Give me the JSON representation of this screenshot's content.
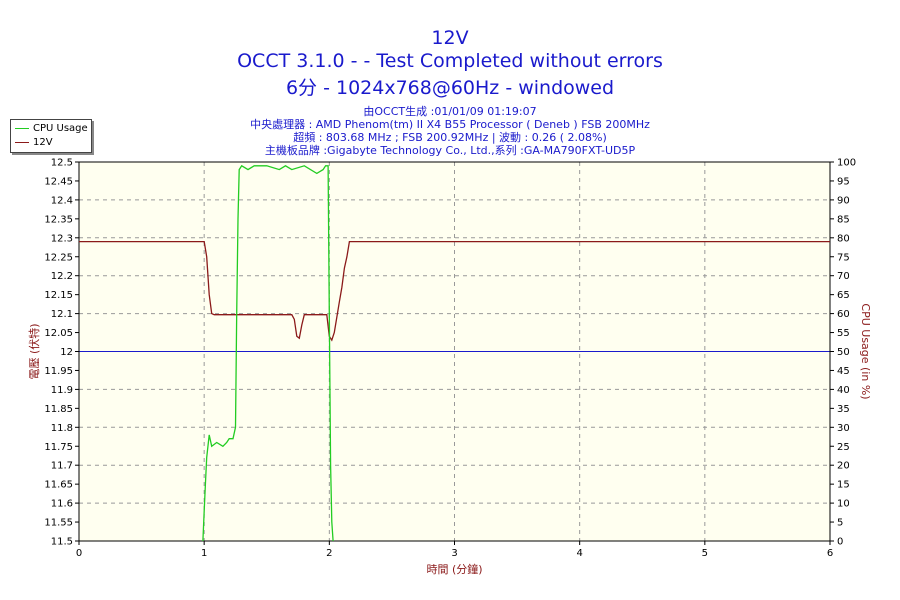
{
  "header": {
    "title": "12V",
    "line2": "OCCT 3.1.0 -  - Test Completed without errors",
    "line3": "6分 - 1024x768@60Hz - windowed",
    "info1": "由OCCT生成 :01/01/09 01:19:07",
    "info2": "中央處理器 : AMD Phenom(tm) II X4 B55 Processor ( Deneb ) FSB 200MHz",
    "info3": "超頻 : 803.68 MHz ; FSB 200.92MHz | 波動 : 0.26 ( 2.08%)",
    "info4": "主機板品牌 :Gigabyte Technology Co., Ltd.,系列 :GA-MA790FXT-UD5P"
  },
  "legend": {
    "items": [
      {
        "label": "CPU Usage",
        "color": "#22cc22"
      },
      {
        "label": "12V",
        "color": "#8b1a1a"
      }
    ]
  },
  "colors": {
    "plot_bg": "#fffff0",
    "cpu": "#22cc22",
    "voltage": "#8b1a1a",
    "reference": "#1a1acc",
    "axis_label": "#8b1a1a",
    "grid": "#999999"
  },
  "chart_data": {
    "type": "line",
    "title": "12V",
    "xlabel": "時間 (分鐘)",
    "ylabel": "電壓 (伏特)",
    "y2label": "CPU Usage (in %)",
    "xlim": [
      0,
      6
    ],
    "ylim": [
      11.5,
      12.5
    ],
    "y2lim": [
      0,
      100
    ],
    "x_ticks": [
      0,
      1,
      2,
      3,
      4,
      5,
      6
    ],
    "y_ticks": [
      "11.5",
      "11.55",
      "11.6",
      "11.65",
      "11.7",
      "11.75",
      "11.8",
      "11.85",
      "11.9",
      "11.95",
      "12",
      "12.05",
      "12.1",
      "12.15",
      "12.2",
      "12.25",
      "12.3",
      "12.35",
      "12.4",
      "12.45",
      "12.5"
    ],
    "y2_ticks": [
      0,
      5,
      10,
      15,
      20,
      25,
      30,
      35,
      40,
      45,
      50,
      55,
      60,
      65,
      70,
      75,
      80,
      85,
      90,
      95,
      100
    ],
    "grid": true,
    "legend_position": "top-left",
    "reference_line": 12.0,
    "series": [
      {
        "name": "12V",
        "axis": "left",
        "x": [
          0,
          1.0,
          1.02,
          1.04,
          1.06,
          1.08,
          1.2,
          1.4,
          1.6,
          1.7,
          1.72,
          1.74,
          1.76,
          1.78,
          1.8,
          1.9,
          1.98,
          2.0,
          2.02,
          2.04,
          2.06,
          2.08,
          2.1,
          2.12,
          2.14,
          2.16,
          6
        ],
        "y": [
          12.29,
          12.29,
          12.25,
          12.15,
          12.1,
          12.097,
          12.097,
          12.097,
          12.097,
          12.097,
          12.085,
          12.04,
          12.035,
          12.07,
          12.097,
          12.097,
          12.097,
          12.04,
          12.03,
          12.05,
          12.09,
          12.13,
          12.17,
          12.22,
          12.25,
          12.29,
          12.29
        ]
      },
      {
        "name": "CPU Usage",
        "axis": "right",
        "x": [
          0.99,
          1.0,
          1.01,
          1.02,
          1.04,
          1.06,
          1.1,
          1.15,
          1.18,
          1.2,
          1.23,
          1.25,
          1.26,
          1.27,
          1.28,
          1.3,
          1.35,
          1.4,
          1.5,
          1.6,
          1.65,
          1.7,
          1.8,
          1.9,
          1.95,
          1.97,
          1.99,
          2.0,
          2.01,
          2.02,
          2.03
        ],
        "y": [
          0,
          8,
          15,
          22,
          28,
          25,
          26,
          25,
          26,
          27,
          27,
          30,
          60,
          85,
          98,
          99,
          98,
          99,
          99,
          98,
          99,
          98,
          99,
          97,
          98,
          99,
          99,
          60,
          20,
          5,
          0
        ]
      }
    ]
  }
}
